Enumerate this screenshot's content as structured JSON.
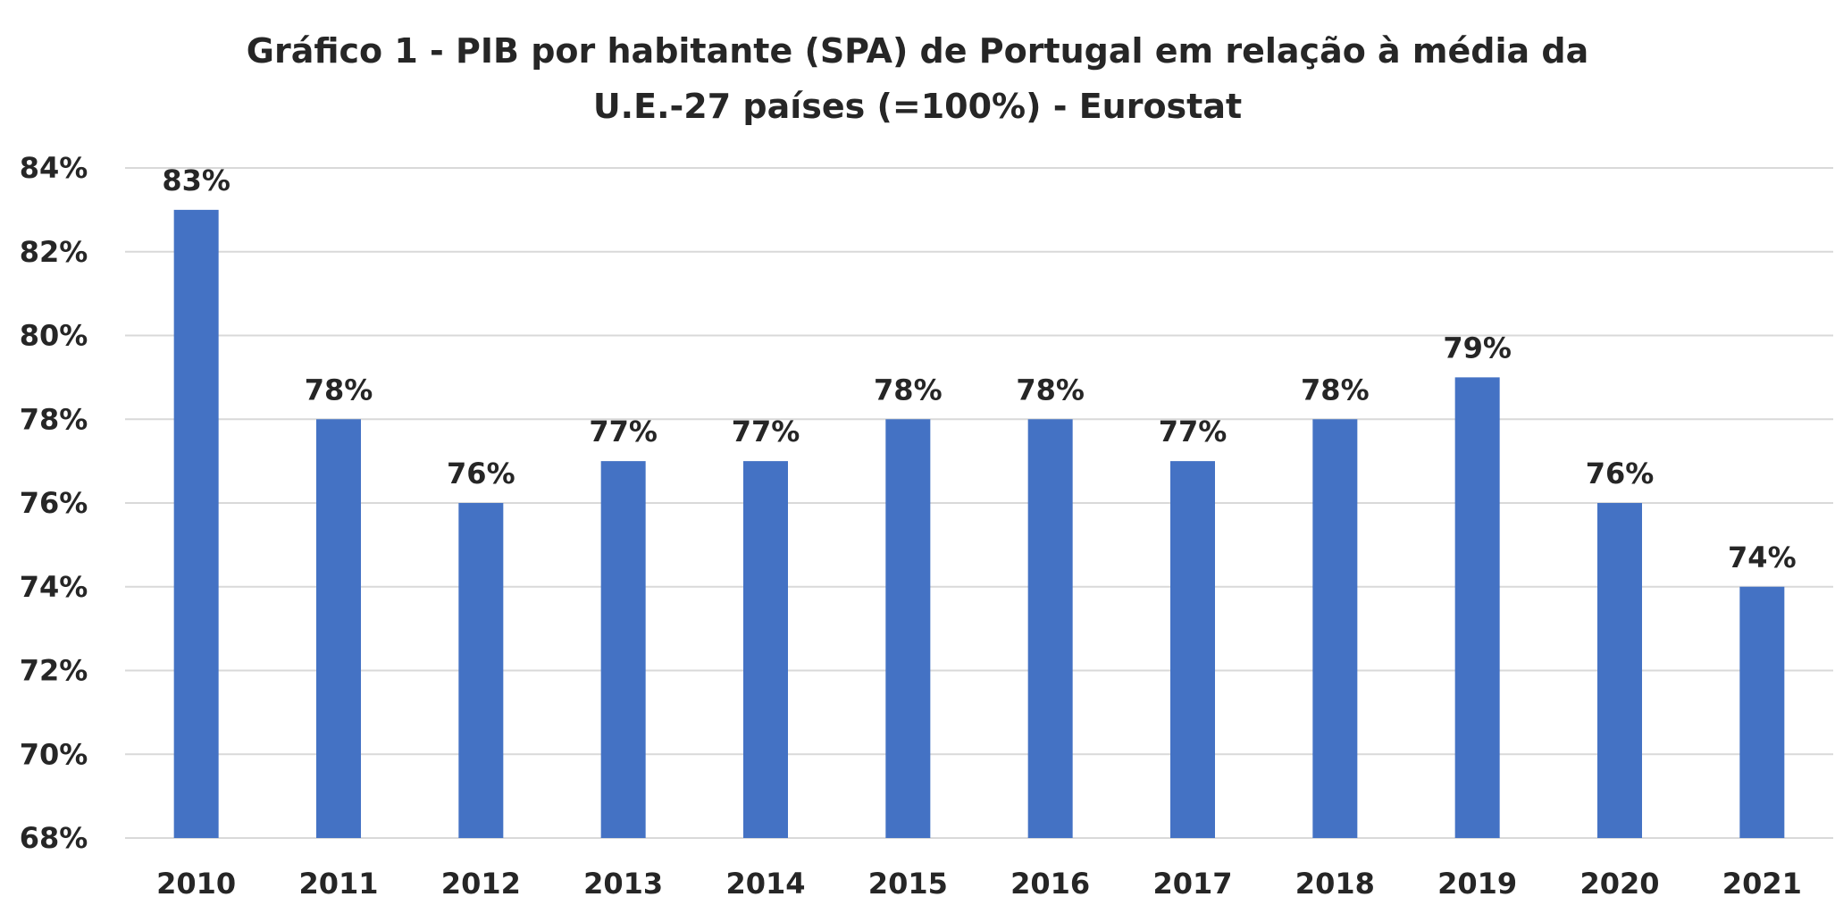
{
  "chart_data": {
    "type": "bar",
    "title_line1": "Gráfico 1 - PIB por habitante (SPA) de Portugal em relação à média da",
    "title_line2": "U.E.-27 países (=100%) - Eurostat",
    "xlabel": "",
    "ylabel": "",
    "categories": [
      "2010",
      "2011",
      "2012",
      "2013",
      "2014",
      "2015",
      "2016",
      "2017",
      "2018",
      "2019",
      "2020",
      "2021"
    ],
    "values": [
      83,
      78,
      76,
      77,
      77,
      78,
      78,
      77,
      78,
      79,
      76,
      74
    ],
    "data_labels": [
      "83%",
      "78%",
      "76%",
      "77%",
      "77%",
      "78%",
      "78%",
      "77%",
      "78%",
      "79%",
      "76%",
      "74%"
    ],
    "ylim": [
      68,
      84
    ],
    "y_ticks": [
      68,
      70,
      72,
      74,
      76,
      78,
      80,
      82,
      84
    ],
    "y_tick_labels": [
      "68%",
      "70%",
      "72%",
      "74%",
      "76%",
      "78%",
      "80%",
      "82%",
      "84%"
    ],
    "grid": true,
    "legend": "none",
    "bar_color": "#4472C4",
    "grid_color": "#D9D9D9"
  }
}
